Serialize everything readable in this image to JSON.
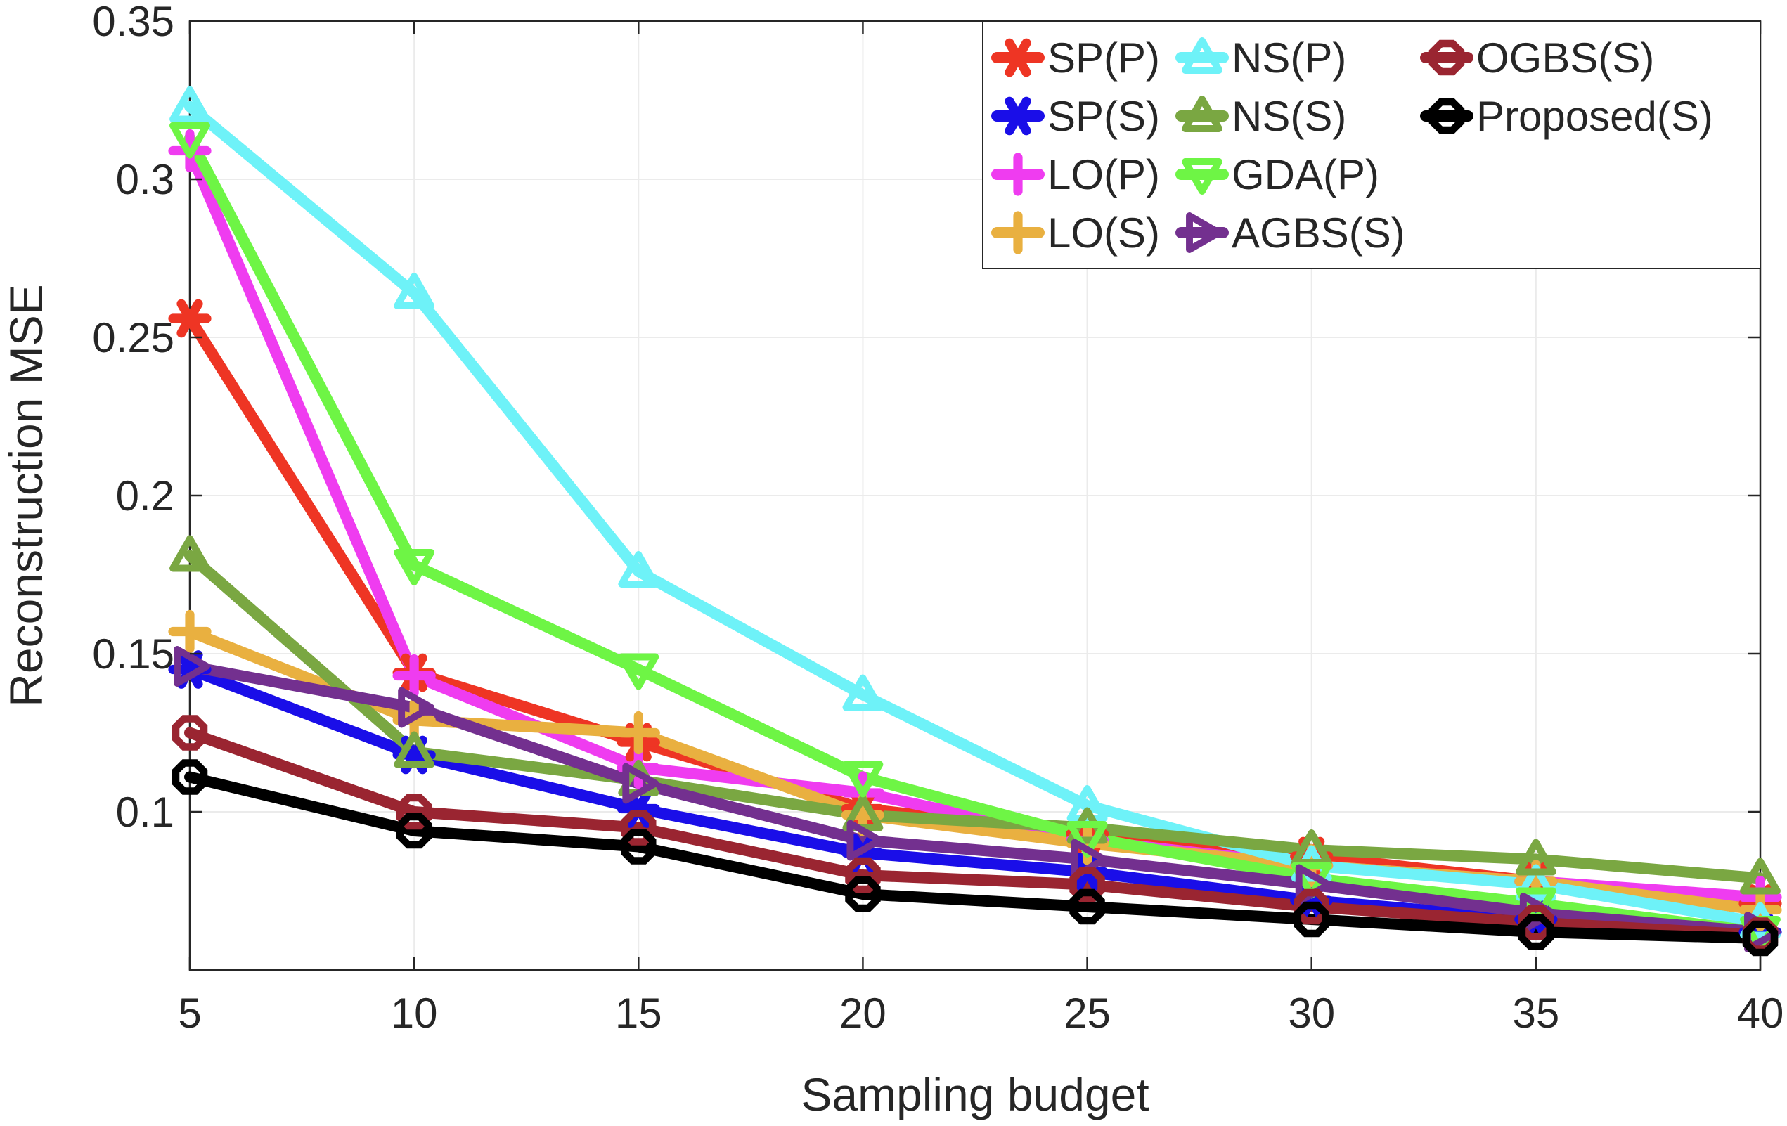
{
  "chart_data": {
    "type": "line",
    "title": "",
    "xlabel": "Sampling budget",
    "ylabel": "Reconstruction MSE",
    "x": [
      5,
      10,
      15,
      20,
      25,
      30,
      35,
      40
    ],
    "xlim": [
      5,
      40
    ],
    "ylim": [
      0.05,
      0.35
    ],
    "xticks": [
      5,
      10,
      15,
      20,
      25,
      30,
      35,
      40
    ],
    "yticks": [
      0.1,
      0.15,
      0.2,
      0.25,
      0.3,
      0.35
    ],
    "ytick_labels": [
      "0.1",
      "0.15",
      "0.2",
      "0.25",
      "0.3",
      "0.35"
    ],
    "grid": true,
    "legend_position": "top-right",
    "series": [
      {
        "name": "SP(P)",
        "color": "#ee3524",
        "marker": "asterisk",
        "values": [
          0.256,
          0.144,
          0.122,
          0.101,
          0.093,
          0.086,
          0.078,
          0.071
        ]
      },
      {
        "name": "SP(S)",
        "color": "#1a0ee8",
        "marker": "asterisk",
        "values": [
          0.145,
          0.118,
          0.101,
          0.087,
          0.081,
          0.072,
          0.066,
          0.062
        ]
      },
      {
        "name": "LO(P)",
        "color": "#ef3cf0",
        "marker": "plus",
        "values": [
          0.309,
          0.143,
          0.114,
          0.106,
          0.091,
          0.083,
          0.078,
          0.073
        ]
      },
      {
        "name": "LO(S)",
        "color": "#e9b040",
        "marker": "plus",
        "values": [
          0.157,
          0.129,
          0.125,
          0.099,
          0.09,
          0.083,
          0.078,
          0.069
        ]
      },
      {
        "name": "NS(P)",
        "color": "#6ef2f8",
        "marker": "triangle-up",
        "values": [
          0.323,
          0.264,
          0.176,
          0.137,
          0.102,
          0.083,
          0.077,
          0.065
        ]
      },
      {
        "name": "NS(S)",
        "color": "#7aa742",
        "marker": "triangle-up",
        "values": [
          0.181,
          0.119,
          0.11,
          0.099,
          0.095,
          0.088,
          0.085,
          0.079
        ]
      },
      {
        "name": "GDA(P)",
        "color": "#6ef545",
        "marker": "triangle-down",
        "values": [
          0.313,
          0.178,
          0.145,
          0.111,
          0.092,
          0.079,
          0.071,
          0.062
        ]
      },
      {
        "name": "AGBS(S)",
        "color": "#73308f",
        "marker": "triangle-right",
        "values": [
          0.146,
          0.133,
          0.109,
          0.091,
          0.085,
          0.077,
          0.068,
          0.062
        ]
      },
      {
        "name": "OGBS(S)",
        "color": "#9a2531",
        "marker": "octagon",
        "values": [
          0.125,
          0.1,
          0.095,
          0.08,
          0.077,
          0.07,
          0.065,
          0.061
        ]
      },
      {
        "name": "Proposed(S)",
        "color": "#000000",
        "marker": "octagon",
        "values": [
          0.111,
          0.094,
          0.089,
          0.074,
          0.07,
          0.066,
          0.062,
          0.06
        ]
      }
    ]
  }
}
